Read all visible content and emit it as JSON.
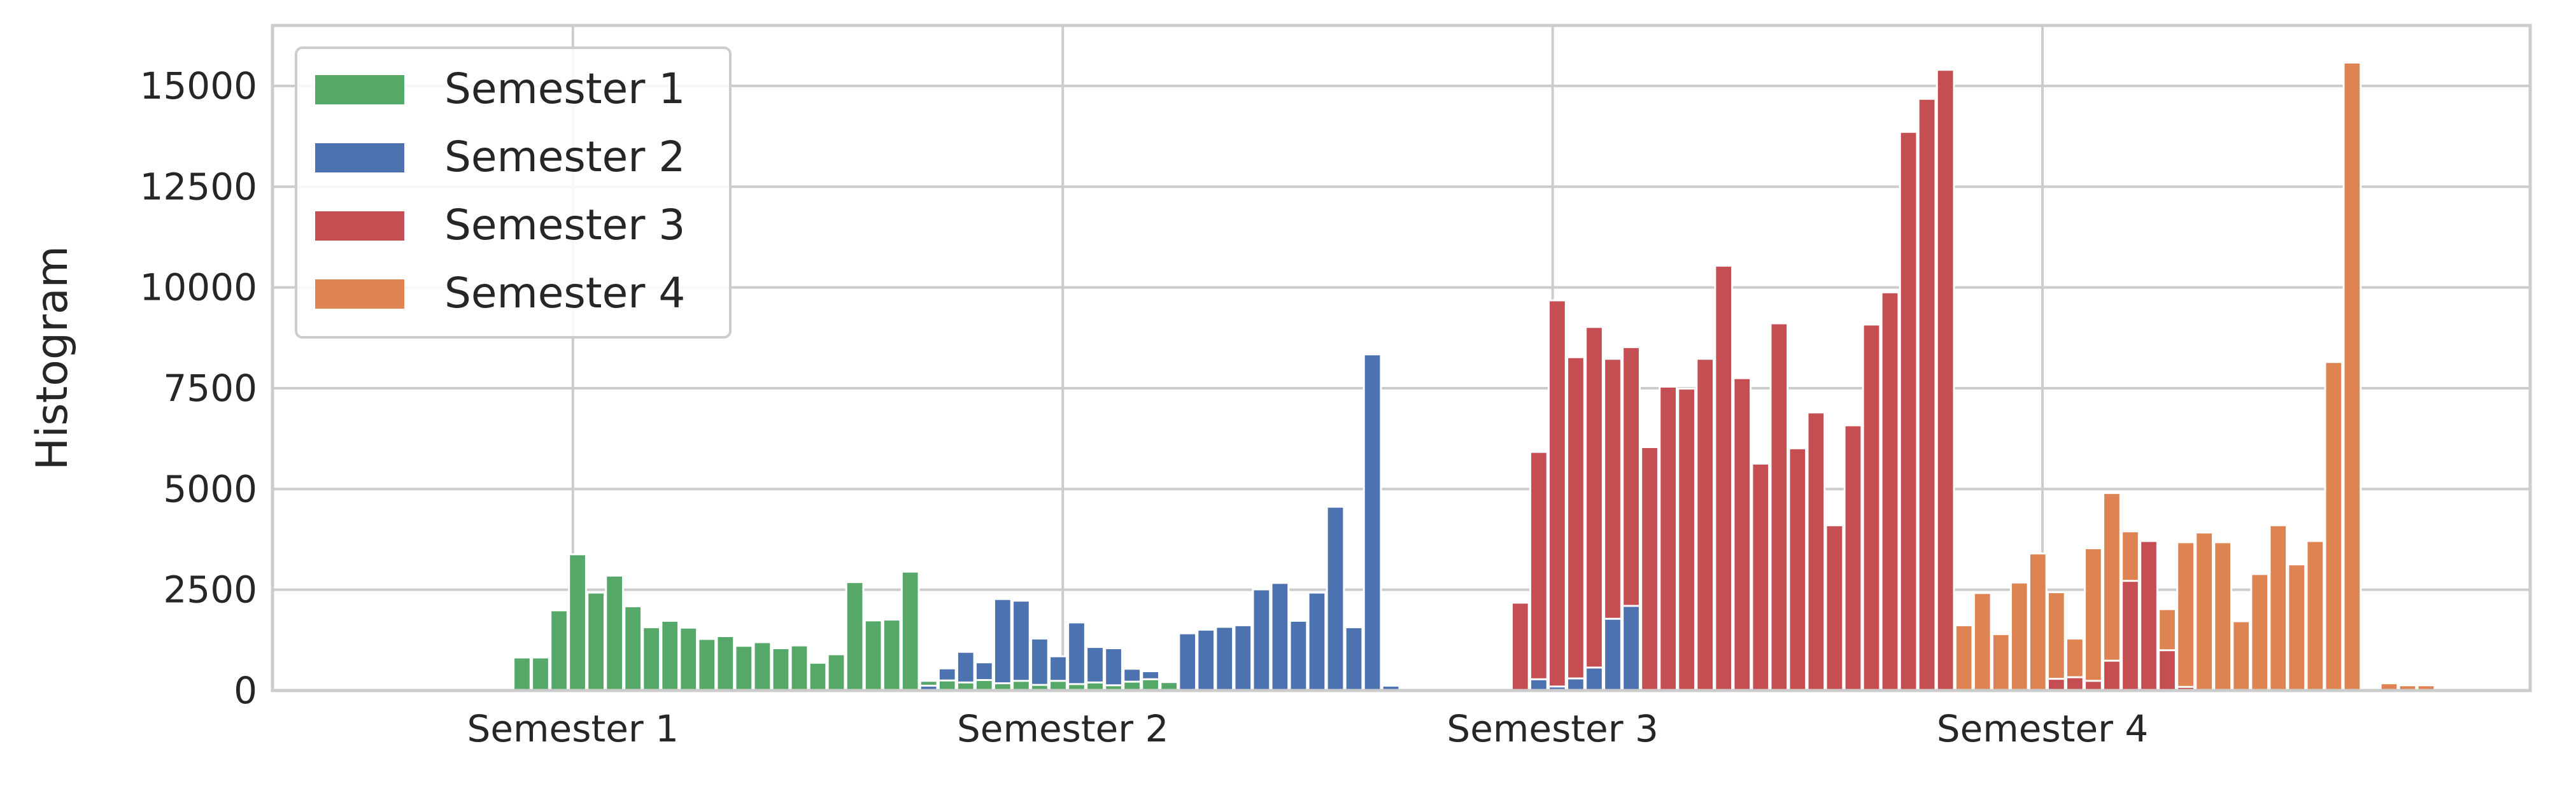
{
  "chart_data": {
    "type": "bar",
    "ylabel": "Histogram",
    "xlabel": "",
    "ylim": [
      0,
      16500
    ],
    "yticks": [
      0,
      2500,
      5000,
      7500,
      10000,
      12500,
      15000
    ],
    "yticklabels": [
      "0",
      "2500",
      "5000",
      "7500",
      "10000",
      "12500",
      "15000"
    ],
    "xlim": [
      0,
      122.13
    ],
    "xtick_positions": [
      16.25,
      42.75,
      69.25,
      95.75
    ],
    "xticklabels": [
      "Semester 1",
      "Semester 2",
      "Semester 3",
      "Semester 4"
    ],
    "grid": true,
    "legend_position": "upper-left",
    "bar_width": 0.92,
    "series": [
      {
        "name": "Semester 1",
        "color": "#55a868",
        "start": 0,
        "values": [
          20,
          20,
          20,
          20,
          20,
          20,
          10,
          0,
          0,
          0,
          0,
          0,
          5,
          820,
          820,
          1990,
          3380,
          2430,
          2850,
          2090,
          1570,
          1730,
          1560,
          1280,
          1350,
          1110,
          1200,
          1050,
          1120,
          690,
          900,
          2690,
          1740,
          1760,
          2950,
          240,
          250,
          200,
          260,
          180,
          240,
          140,
          240,
          160,
          200,
          130,
          220,
          280,
          210,
          0,
          0,
          0,
          0,
          0,
          0,
          0,
          0,
          0,
          0,
          0,
          0,
          0,
          0,
          0,
          0,
          0,
          0,
          0,
          0,
          0,
          0,
          0,
          0,
          0,
          0,
          0,
          0,
          0,
          0,
          0,
          0,
          0,
          0,
          0,
          0,
          0,
          0,
          0,
          0,
          0,
          0,
          0,
          0,
          0,
          0,
          0,
          0,
          0,
          0,
          0,
          0,
          0,
          0,
          0,
          0,
          0,
          0,
          0,
          0,
          0,
          0,
          0,
          0,
          0,
          0,
          0,
          0,
          0,
          0,
          0,
          0,
          0
        ]
      },
      {
        "name": "Semester 2",
        "color": "#4c72b0",
        "start": 0,
        "values": [
          0,
          0,
          0,
          0,
          0,
          0,
          0,
          0,
          0,
          0,
          0,
          0,
          0,
          0,
          0,
          0,
          0,
          0,
          0,
          0,
          0,
          0,
          0,
          0,
          0,
          0,
          0,
          0,
          0,
          0,
          0,
          0,
          0,
          0,
          0,
          120,
          550,
          960,
          700,
          2270,
          2230,
          1290,
          850,
          1690,
          1080,
          1050,
          540,
          480,
          0,
          1420,
          1510,
          1580,
          1620,
          2510,
          2670,
          1730,
          2430,
          4560,
          1570,
          8340,
          120,
          0,
          0,
          0,
          0,
          0,
          0,
          0,
          280,
          100,
          300,
          570,
          1780,
          2100,
          0,
          0,
          0,
          0,
          0,
          0,
          0,
          0,
          0,
          0,
          0,
          0,
          0,
          0,
          0,
          0,
          0,
          0,
          0,
          0,
          0,
          0,
          0,
          0,
          0,
          0,
          0,
          0,
          0,
          0,
          0,
          0,
          0,
          0,
          0,
          0,
          0,
          0,
          0,
          0,
          0,
          0,
          0,
          0,
          0,
          0,
          0
        ]
      },
      {
        "name": "Semester 3",
        "color": "#c44e52",
        "start": 0,
        "values": [
          0,
          0,
          0,
          0,
          0,
          0,
          0,
          0,
          0,
          0,
          0,
          0,
          0,
          0,
          0,
          0,
          0,
          0,
          0,
          0,
          0,
          0,
          0,
          0,
          0,
          0,
          0,
          0,
          0,
          0,
          0,
          0,
          0,
          0,
          0,
          0,
          0,
          0,
          0,
          0,
          0,
          0,
          0,
          0,
          0,
          0,
          0,
          0,
          0,
          0,
          0,
          0,
          0,
          0,
          0,
          0,
          0,
          0,
          0,
          0,
          0,
          0,
          0,
          0,
          0,
          0,
          0,
          2180,
          5920,
          9680,
          8270,
          9020,
          8230,
          8520,
          6040,
          7540,
          7490,
          8230,
          10540,
          7750,
          5630,
          9110,
          6010,
          6900,
          4100,
          6580,
          9080,
          9880,
          13860,
          14680,
          15400,
          0,
          0,
          0,
          0,
          0,
          290,
          330,
          240,
          740,
          2720,
          3710,
          1000,
          90,
          0,
          0,
          0,
          0,
          0,
          0,
          0,
          0,
          0,
          0,
          0,
          0,
          0,
          0,
          0,
          0,
          0,
          0,
          0,
          0
        ]
      },
      {
        "name": "Semester 4",
        "color": "#dd8452",
        "start": 0,
        "values": [
          0,
          0,
          0,
          0,
          0,
          0,
          0,
          0,
          0,
          0,
          0,
          0,
          0,
          0,
          0,
          0,
          0,
          0,
          0,
          0,
          0,
          0,
          0,
          0,
          0,
          0,
          0,
          0,
          0,
          0,
          0,
          0,
          0,
          0,
          0,
          0,
          0,
          0,
          0,
          0,
          0,
          0,
          0,
          0,
          0,
          0,
          0,
          0,
          0,
          0,
          0,
          0,
          0,
          0,
          0,
          0,
          0,
          0,
          0,
          0,
          0,
          0,
          0,
          0,
          0,
          0,
          0,
          0,
          0,
          0,
          0,
          0,
          0,
          0,
          0,
          0,
          0,
          0,
          0,
          0,
          0,
          0,
          0,
          0,
          0,
          0,
          0,
          0,
          0,
          0,
          0,
          1620,
          2420,
          1400,
          2680,
          3400,
          2440,
          1290,
          3530,
          4900,
          3950,
          3730,
          2020,
          3680,
          3920,
          3680,
          1720,
          2890,
          4100,
          3130,
          3710,
          8150,
          15580,
          0,
          180,
          130,
          130,
          0,
          0,
          0,
          0,
          0,
          0,
          0,
          0,
          190,
          330,
          710,
          770
        ]
      }
    ]
  }
}
